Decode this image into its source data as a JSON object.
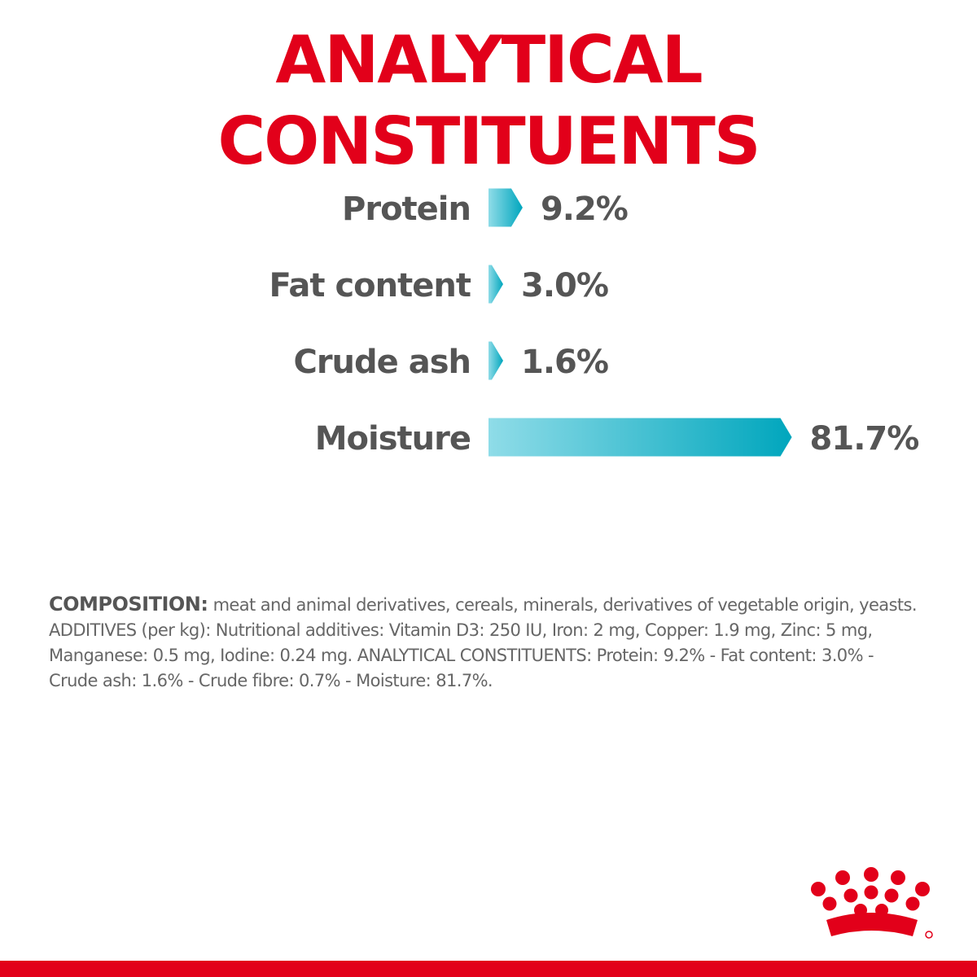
{
  "title": "ANALYTICAL CONSTITUENTS",
  "colors": {
    "title": "#e2001a",
    "label": "#555555",
    "bar_light": "#8fdce8",
    "bar_dark": "#00a6bd",
    "logo": "#e2001a",
    "bottom_bar": "#e2001a"
  },
  "chart_data": {
    "type": "bar",
    "orientation": "horizontal",
    "categories": [
      "Protein",
      "Fat content",
      "Crude ash",
      "Moisture"
    ],
    "values": [
      9.2,
      3.0,
      1.6,
      81.7
    ],
    "value_labels": [
      "9.2%",
      "3.0%",
      "1.6%",
      "81.7%"
    ],
    "title": "ANALYTICAL CONSTITUENTS",
    "xlabel": "",
    "ylabel": "",
    "grid": false,
    "legend": "none"
  },
  "composition": {
    "label": "COMPOSITION:",
    "lines": [
      " meat and animal derivatives, cereals, minerals, derivatives of vegetable origin, yeasts.",
      "ADDITIVES (per kg): Nutritional additives: Vitamin D3: 250 IU, Iron: 2 mg, Copper: 1.9 mg, Zinc: 5 mg,",
      "Manganese: 0.5 mg, Iodine: 0.24 mg. ANALYTICAL CONSTITUENTS: Protein: 9.2% - Fat content: 3.0% -",
      "Crude ash: 1.6% - Crude fibre: 0.7% - Moisture: 81.7%."
    ]
  },
  "logo": {
    "icon": "crown-icon"
  }
}
